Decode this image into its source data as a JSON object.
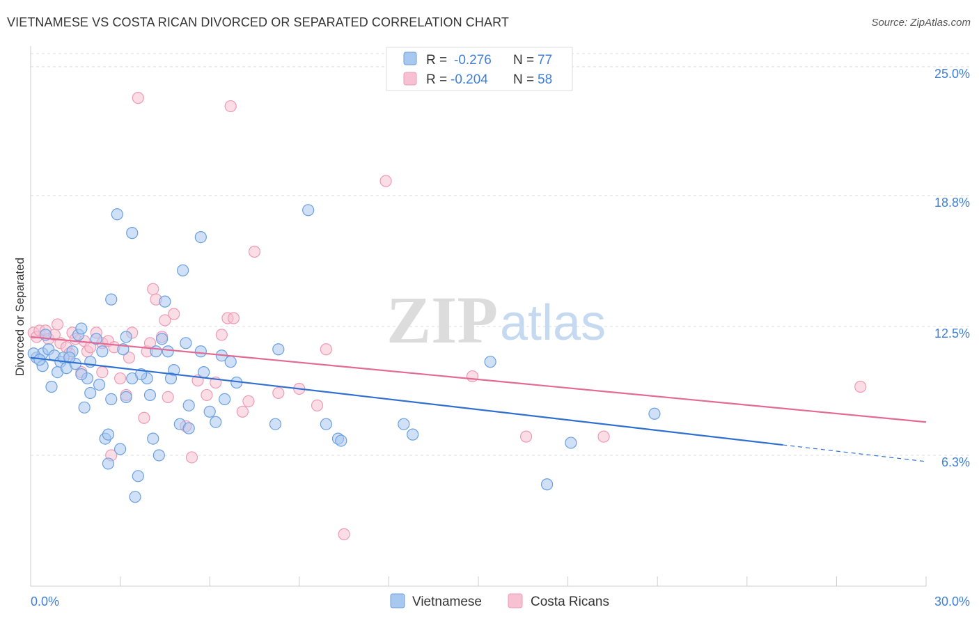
{
  "title": "VIETNAMESE VS COSTA RICAN DIVORCED OR SEPARATED CORRELATION CHART",
  "source": "Source: ZipAtlas.com",
  "watermark": {
    "zip": "ZIP",
    "atlas": "atlas"
  },
  "legend": {
    "r_label": "R =",
    "n_label": "N =",
    "rows": [
      {
        "r": "-0.276",
        "n": "77"
      },
      {
        "r": "-0.204",
        "n": "58"
      }
    ]
  },
  "colors": {
    "vietnamese_fill": "#a9c8f0",
    "vietnamese_stroke": "#6a9fe0",
    "vietnamese_line": "#2f6fd0",
    "costa_fill": "#f7c1d2",
    "costa_stroke": "#ee9ab5",
    "costa_line": "#e36a94",
    "axis_text": "#3f7fd8",
    "grid": "#dddddd"
  },
  "chart_data": {
    "type": "scatter",
    "title": "VIETNAMESE VS COSTA RICAN DIVORCED OR SEPARATED CORRELATION CHART",
    "xlabel": "",
    "ylabel": "Divorced or Separated",
    "xlim": [
      0,
      30
    ],
    "ylim": [
      0,
      25.8
    ],
    "x_tick_labels": [
      "0.0%",
      "30.0%"
    ],
    "y_ticks": [
      {
        "value": 6.3,
        "label": "6.3%"
      },
      {
        "value": 12.5,
        "label": "12.5%"
      },
      {
        "value": 18.8,
        "label": "18.8%"
      },
      {
        "value": 25.0,
        "label": "25.0%"
      }
    ],
    "grid": true,
    "legend_position": "top-center",
    "series": [
      {
        "name": "Vietnamese",
        "r": -0.276,
        "n": 77,
        "trend": {
          "x0": 0,
          "y0": 11.0,
          "x1": 25.2,
          "y1": 6.8,
          "dashed_to": 30,
          "y_end": 6.0
        },
        "points": [
          [
            0.2,
            11.0
          ],
          [
            0.4,
            11.2
          ],
          [
            0.6,
            11.4
          ],
          [
            0.8,
            11.1
          ],
          [
            1.0,
            10.8
          ],
          [
            0.4,
            10.6
          ],
          [
            0.7,
            9.6
          ],
          [
            0.9,
            10.3
          ],
          [
            1.2,
            10.5
          ],
          [
            1.4,
            11.3
          ],
          [
            1.6,
            12.1
          ],
          [
            1.7,
            12.4
          ],
          [
            1.5,
            10.7
          ],
          [
            1.9,
            10.0
          ],
          [
            2.0,
            9.3
          ],
          [
            2.2,
            11.9
          ],
          [
            2.3,
            9.7
          ],
          [
            1.8,
            8.6
          ],
          [
            2.7,
            9.0
          ],
          [
            2.5,
            7.1
          ],
          [
            2.6,
            7.3
          ],
          [
            3.0,
            6.6
          ],
          [
            2.6,
            5.9
          ],
          [
            3.2,
            12.0
          ],
          [
            3.1,
            11.4
          ],
          [
            2.7,
            13.8
          ],
          [
            2.9,
            17.9
          ],
          [
            3.4,
            17.0
          ],
          [
            3.4,
            10.0
          ],
          [
            3.2,
            9.1
          ],
          [
            3.6,
            5.3
          ],
          [
            3.5,
            4.3
          ],
          [
            3.9,
            10.0
          ],
          [
            4.0,
            9.2
          ],
          [
            4.1,
            7.1
          ],
          [
            4.3,
            6.3
          ],
          [
            4.2,
            11.3
          ],
          [
            4.4,
            11.9
          ],
          [
            4.5,
            13.7
          ],
          [
            4.6,
            11.3
          ],
          [
            4.8,
            10.4
          ],
          [
            5.0,
            7.8
          ],
          [
            5.1,
            15.2
          ],
          [
            5.2,
            11.7
          ],
          [
            5.3,
            7.6
          ],
          [
            5.3,
            8.7
          ],
          [
            5.7,
            11.3
          ],
          [
            5.8,
            10.3
          ],
          [
            5.7,
            16.8
          ],
          [
            6.0,
            8.4
          ],
          [
            6.2,
            7.9
          ],
          [
            6.5,
            9.0
          ],
          [
            6.4,
            11.1
          ],
          [
            6.7,
            10.8
          ],
          [
            6.9,
            9.8
          ],
          [
            8.2,
            7.8
          ],
          [
            8.3,
            11.4
          ],
          [
            9.3,
            18.1
          ],
          [
            9.9,
            7.8
          ],
          [
            10.3,
            7.1
          ],
          [
            10.4,
            7.0
          ],
          [
            12.5,
            7.8
          ],
          [
            12.8,
            7.3
          ],
          [
            15.4,
            10.8
          ],
          [
            17.3,
            4.9
          ],
          [
            18.1,
            6.9
          ],
          [
            20.9,
            8.3
          ],
          [
            0.1,
            11.2
          ],
          [
            0.3,
            10.9
          ],
          [
            1.1,
            11.0
          ],
          [
            1.3,
            11.0
          ],
          [
            2.0,
            10.8
          ],
          [
            2.4,
            11.3
          ],
          [
            3.7,
            10.2
          ],
          [
            4.7,
            10.0
          ],
          [
            0.5,
            12.1
          ],
          [
            1.7,
            10.2
          ]
        ]
      },
      {
        "name": "Costa Ricans",
        "r": -0.204,
        "n": 58,
        "trend": {
          "x0": 0,
          "y0": 12.0,
          "x1": 30,
          "y1": 7.9
        },
        "points": [
          [
            0.1,
            12.2
          ],
          [
            0.2,
            12.0
          ],
          [
            0.3,
            12.3
          ],
          [
            0.5,
            12.3
          ],
          [
            0.6,
            11.9
          ],
          [
            0.8,
            12.1
          ],
          [
            0.9,
            12.6
          ],
          [
            1.0,
            11.7
          ],
          [
            1.2,
            11.5
          ],
          [
            1.3,
            11.2
          ],
          [
            1.4,
            12.2
          ],
          [
            1.5,
            11.9
          ],
          [
            1.7,
            10.3
          ],
          [
            1.8,
            11.8
          ],
          [
            1.9,
            11.3
          ],
          [
            2.0,
            11.5
          ],
          [
            2.2,
            12.2
          ],
          [
            2.4,
            11.7
          ],
          [
            2.4,
            10.3
          ],
          [
            2.6,
            11.8
          ],
          [
            2.7,
            6.3
          ],
          [
            2.8,
            11.5
          ],
          [
            3.0,
            10.0
          ],
          [
            3.2,
            9.2
          ],
          [
            3.3,
            11.0
          ],
          [
            3.4,
            12.2
          ],
          [
            3.6,
            23.5
          ],
          [
            3.8,
            8.1
          ],
          [
            3.9,
            11.3
          ],
          [
            4.0,
            11.7
          ],
          [
            4.1,
            14.3
          ],
          [
            4.2,
            13.8
          ],
          [
            4.4,
            12.0
          ],
          [
            4.5,
            12.8
          ],
          [
            4.6,
            9.1
          ],
          [
            4.8,
            13.1
          ],
          [
            5.2,
            7.7
          ],
          [
            5.4,
            6.2
          ],
          [
            5.6,
            9.9
          ],
          [
            5.9,
            9.2
          ],
          [
            6.2,
            9.8
          ],
          [
            6.4,
            12.1
          ],
          [
            6.6,
            12.9
          ],
          [
            6.8,
            12.9
          ],
          [
            6.7,
            23.1
          ],
          [
            7.1,
            8.4
          ],
          [
            7.3,
            8.9
          ],
          [
            7.5,
            16.1
          ],
          [
            8.3,
            9.3
          ],
          [
            9.0,
            9.5
          ],
          [
            9.6,
            8.7
          ],
          [
            9.9,
            11.4
          ],
          [
            10.5,
            2.5
          ],
          [
            11.9,
            19.5
          ],
          [
            14.8,
            10.1
          ],
          [
            16.6,
            7.2
          ],
          [
            19.2,
            7.2
          ],
          [
            27.8,
            9.6
          ]
        ]
      }
    ]
  },
  "bottom_legend": [
    "Vietnamese",
    "Costa Ricans"
  ]
}
